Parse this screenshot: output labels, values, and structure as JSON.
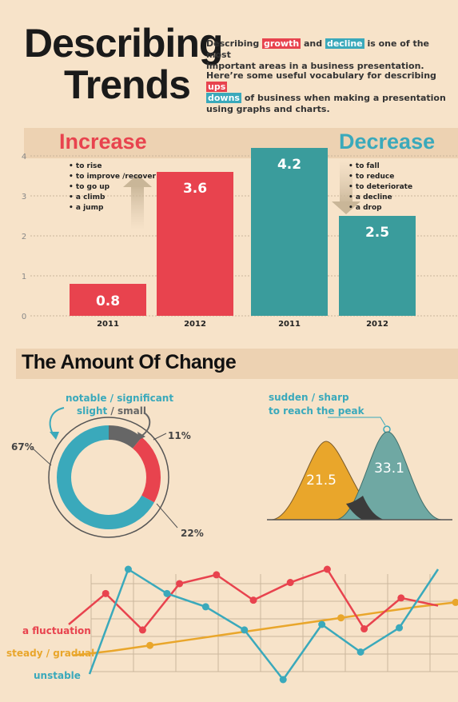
{
  "header": {
    "title_line1": "Describing",
    "title_line2": "Trends",
    "intro1_a": "Describing ",
    "intro1_growth": "growth",
    "intro1_b": " and ",
    "intro1_decline": "decline",
    "intro1_c": " is one of the most",
    "intro1_d": "important areas in a business presentation.",
    "intro2_a": "Here’re some useful vocabulary for describing ",
    "intro2_ups": "ups",
    "intro2_downs": "downs",
    "intro2_b": " of business when making a presentation",
    "intro2_c": "using graphs and charts."
  },
  "trend": {
    "increase_label": "Increase",
    "decrease_label": "Decrease",
    "increase_vocab": [
      "to rise",
      "to improve /recover",
      "to go up",
      "a climb",
      "a jump"
    ],
    "decrease_vocab": [
      "to fall",
      "to reduce",
      "to deteriorate",
      "a decline",
      "a drop"
    ]
  },
  "chart_data": {
    "type": "bar",
    "categories": [
      "2011",
      "2012",
      "2011",
      "2012"
    ],
    "values": [
      0.8,
      3.6,
      4.2,
      2.5
    ],
    "value_labels": [
      "0.8",
      "3.6",
      "4.2",
      "2.5"
    ],
    "y_ticks": [
      "0",
      "1",
      "2",
      "3",
      "4"
    ],
    "ylim": [
      0,
      4.2
    ],
    "colors": [
      "#e8434e",
      "#e8434e",
      "#3a9c9c",
      "#3a9c9c"
    ]
  },
  "change": {
    "title": "The Amount Of Change",
    "donut_notable": "notable / significant",
    "donut_slight": "slight",
    "donut_sep": " / ",
    "donut_small": "small",
    "donut_pct_large": "67%",
    "donut_pct_gray": "11%",
    "donut_pct_red": "22%",
    "donut_values": [
      67,
      11,
      22
    ],
    "peak_label_1": "sudden / sharp",
    "peak_label_2": "to reach the peak",
    "peak_values": [
      "21.5",
      "33.1"
    ]
  },
  "lines": {
    "fluctuation_label": "a fluctuation",
    "steady_label": "steady / gradual",
    "unstable_label": "unstable",
    "fluctuation": [
      0.5,
      0.78,
      0.45,
      0.87,
      0.95,
      0.72,
      0.88,
      1.0,
      0.46,
      0.74,
      0.67
    ],
    "unstable": [
      0.05,
      1.0,
      0.78,
      0.66,
      0.45,
      0.0,
      0.5,
      0.25,
      0.47,
      1.0
    ],
    "steady": [
      0.22,
      0.26,
      0.31,
      0.36,
      0.41,
      0.46,
      0.51,
      0.56,
      0.61,
      0.66,
      0.7
    ]
  },
  "colors": {
    "red": "#e8434e",
    "teal": "#3aa9bb",
    "dark_teal": "#3a9c9c",
    "orange": "#e9a62b",
    "gray": "#666666"
  }
}
